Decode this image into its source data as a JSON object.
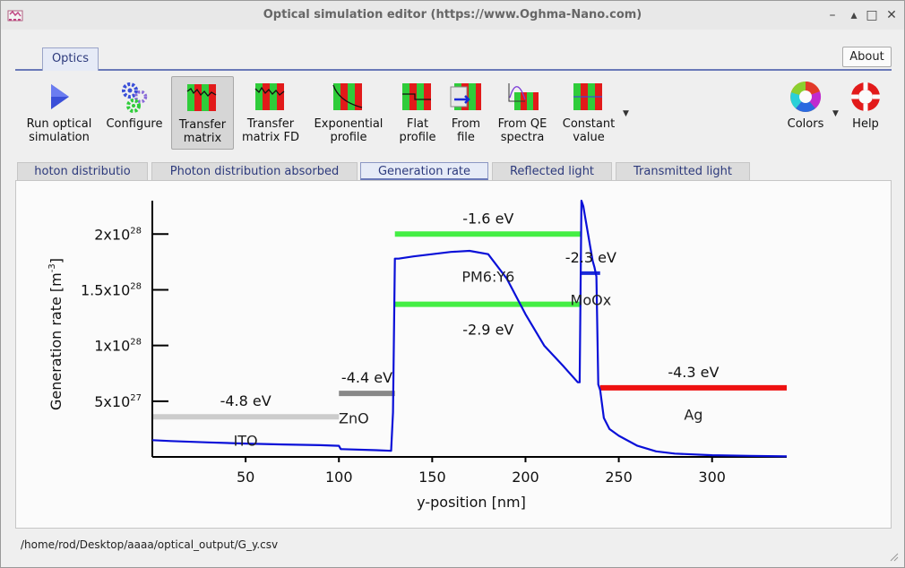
{
  "window": {
    "title": "Optical simulation editor (https://www.Oghma-Nano.com)",
    "controls": [
      "–",
      "▴",
      "□",
      "✕"
    ]
  },
  "ribbon": {
    "tab": "Optics",
    "about": "About",
    "tools": [
      {
        "name": "run-optical-simulation-button",
        "label": "Run optical\nsimulation",
        "icon": "play-icon"
      },
      {
        "name": "configure-button",
        "label": "Configure",
        "icon": "gears-icon"
      },
      {
        "name": "transfer-matrix-button",
        "label": "Transfer\nmatrix",
        "icon": "transfer-matrix-icon"
      },
      {
        "name": "transfer-matrix-fd-button",
        "label": "Transfer\nmatrix FD",
        "icon": "transfer-matrix-fd-icon"
      },
      {
        "name": "exponential-profile-button",
        "label": "Exponential\nprofile",
        "icon": "exponential-profile-icon"
      },
      {
        "name": "flat-profile-button",
        "label": "Flat\nprofile",
        "icon": "flat-profile-icon"
      },
      {
        "name": "from-file-button",
        "label": "From\nfile",
        "icon": "from-file-icon"
      },
      {
        "name": "from-qe-spectra-button",
        "label": "From QE\nspectra",
        "icon": "qe-spectra-icon"
      },
      {
        "name": "constant-value-button",
        "label": "Constant\nvalue",
        "icon": "constant-value-icon"
      },
      {
        "name": "colors-button",
        "label": "Colors",
        "icon": "color-wheel-icon"
      },
      {
        "name": "help-button",
        "label": "Help",
        "icon": "lifebuoy-icon"
      }
    ]
  },
  "doc_tabs": [
    "hoton distributio",
    "Photon distribution absorbed",
    "Generation rate",
    "Reflected light",
    "Transmitted light"
  ],
  "active_doc_tab": 2,
  "status_path": "/home/rod/Desktop/aaaa/optical_output/G_y.csv",
  "chart_data": {
    "type": "line",
    "xlabel": "y-position [nm]",
    "ylabel": "Generation rate [m",
    "ylabel_sup": "-3",
    "ylabel_end": "]",
    "x_ticks": [
      "50",
      "100",
      "150",
      "200",
      "250",
      "300"
    ],
    "y_ticks": [
      {
        "mant": "5x10",
        "exp": "27",
        "value": 5e+27
      },
      {
        "mant": "1x10",
        "exp": "28",
        "value": 1e+28
      },
      {
        "mant": "1.5x10",
        "exp": "28",
        "value": 1.5e+28
      },
      {
        "mant": "2x10",
        "exp": "28",
        "value": 2e+28
      }
    ],
    "xlim": [
      0,
      340
    ],
    "ylim": [
      0,
      2.3e+28
    ],
    "series": [
      {
        "color": "#0a10d8",
        "x": [
          0,
          10,
          30,
          50,
          70,
          90,
          100,
          101,
          120,
          128,
          129,
          130,
          132,
          140,
          150,
          160,
          170,
          180,
          190,
          200,
          210,
          220,
          228,
          229,
          230,
          231,
          232,
          236,
          237,
          238,
          239,
          240,
          242,
          245,
          250,
          260,
          270,
          280,
          300,
          320,
          340
        ],
        "y": [
          1.5e+27,
          1.42e+27,
          1.3e+27,
          1.2e+27,
          1.12e+27,
          1.05e+27,
          1e+27,
          7e+26,
          6e+26,
          5.5e+26,
          4e+27,
          1.78e+28,
          1.78e+28,
          1.8e+28,
          1.82e+28,
          1.84e+28,
          1.85e+28,
          1.82e+28,
          1.6e+28,
          1.28e+28,
          1e+28,
          8.2e+27,
          6.7e+27,
          6.7e+27,
          2.3e+28,
          2.25e+28,
          2.15e+28,
          1.76e+28,
          1.7e+28,
          1.62e+28,
          6.5e+27,
          6e+27,
          3.5e+27,
          2.5e+27,
          1.9e+27,
          1e+27,
          5e+26,
          3e+26,
          1.5e+26,
          1e+26,
          5e+25
        ]
      }
    ],
    "layers": [
      {
        "name": "ITO",
        "x0": 0,
        "x1": 100
      },
      {
        "name": "ZnO",
        "x0": 100,
        "x1": 130
      },
      {
        "name": "PM6:Y6",
        "x0": 130,
        "x1": 230
      },
      {
        "name": "MoOx",
        "x0": 230,
        "x1": 240
      },
      {
        "name": "Ag",
        "x0": 240,
        "x1": 340
      }
    ],
    "bands": [
      {
        "label": "-4.8 eV",
        "x0": 0,
        "x1": 100,
        "y": 3.6e+27,
        "color": "#cccccc"
      },
      {
        "label": "-4.4 eV",
        "x0": 100,
        "x1": 130,
        "y": 5.7e+27,
        "color": "#888888"
      },
      {
        "label": "-1.6 eV",
        "x0": 130,
        "x1": 230,
        "y": 2e+28,
        "color": "#44ee44"
      },
      {
        "label": "-2.9 eV",
        "x0": 130,
        "x1": 230,
        "y": 1.37e+28,
        "color": "#44ee44"
      },
      {
        "label": "-2.3 eV",
        "x0": 230,
        "x1": 240,
        "y": 1.65e+28,
        "color": "#1a2ad8"
      },
      {
        "label": "-4.3 eV",
        "x0": 240,
        "x1": 340,
        "y": 6.2e+27,
        "color": "#ee1111"
      }
    ]
  }
}
